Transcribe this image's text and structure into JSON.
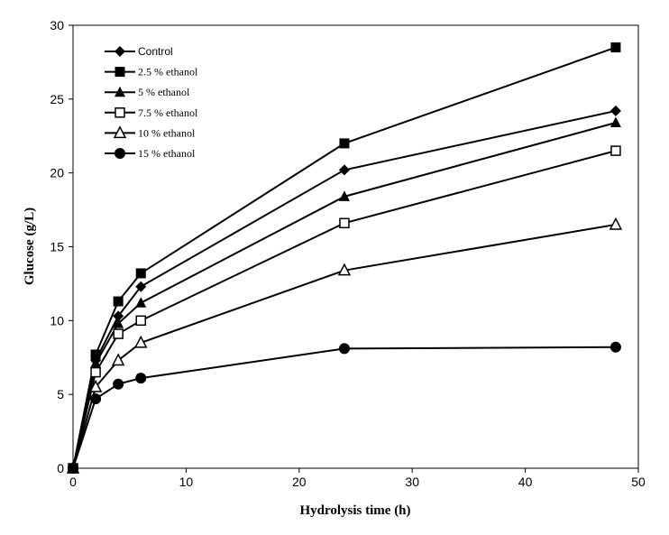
{
  "chart_data": {
    "type": "line",
    "title": "",
    "xlabel": "Hydrolysis time (h)",
    "ylabel": "Glucose (g/L)",
    "xlim": [
      0,
      50
    ],
    "ylim": [
      0,
      30
    ],
    "xticks": [
      0,
      10,
      20,
      30,
      40,
      50
    ],
    "yticks": [
      0,
      5,
      10,
      15,
      20,
      25,
      30
    ],
    "x": [
      0,
      2,
      4,
      6,
      24,
      48
    ],
    "legend_position": "top-left",
    "series": [
      {
        "name": "Control",
        "marker": "diamond",
        "values": [
          0,
          7.3,
          10.3,
          12.3,
          20.2,
          24.2
        ]
      },
      {
        "name": "2.5 % ethanol",
        "marker": "square",
        "values": [
          0,
          7.7,
          11.3,
          13.2,
          22.0,
          28.5
        ]
      },
      {
        "name": "5 % ethanol",
        "marker": "triangle",
        "values": [
          0,
          7.1,
          9.8,
          11.2,
          18.4,
          23.4
        ]
      },
      {
        "name": "7.5 % ethanol",
        "marker": "square-open",
        "values": [
          0,
          6.5,
          9.1,
          10.0,
          16.6,
          21.5
        ]
      },
      {
        "name": "10 % ethanol",
        "marker": "triangle-open",
        "values": [
          0,
          5.5,
          7.3,
          8.5,
          13.4,
          16.5
        ]
      },
      {
        "name": "15 % ethanol",
        "marker": "circle",
        "values": [
          0,
          4.7,
          5.7,
          6.1,
          8.1,
          8.2
        ]
      }
    ]
  }
}
